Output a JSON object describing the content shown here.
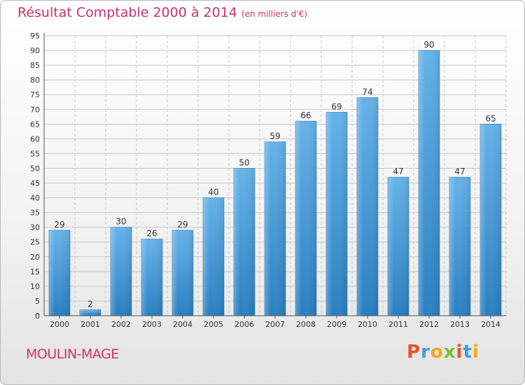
{
  "header": {
    "title": "Résultat Comptable 2000 à 2014",
    "subtitle": "(en milliers d'€)"
  },
  "footer": {
    "commune": "MOULIN-MAGE",
    "logo": "Proxiti"
  },
  "colors": {
    "title": "#cc3366",
    "bar_light": "#66b3ea",
    "bar_dark": "#2a7fc1",
    "grid": "#c8c8c8"
  },
  "chart_data": {
    "type": "bar",
    "title": "Résultat Comptable 2000 à 2014",
    "subtitle": "(en milliers d'€)",
    "categories": [
      "2000",
      "2001",
      "2002",
      "2003",
      "2004",
      "2005",
      "2006",
      "2007",
      "2008",
      "2009",
      "2010",
      "2011",
      "2012",
      "2013",
      "2014"
    ],
    "values": [
      29,
      2,
      30,
      26,
      29,
      40,
      50,
      59,
      66,
      69,
      74,
      47,
      90,
      47,
      65
    ],
    "ylim": [
      0,
      95
    ],
    "yticks": [
      0,
      5,
      10,
      15,
      20,
      25,
      30,
      35,
      40,
      45,
      50,
      55,
      60,
      65,
      70,
      75,
      80,
      85,
      90,
      95
    ],
    "grid": true,
    "data_labels": true,
    "legend": "none"
  }
}
